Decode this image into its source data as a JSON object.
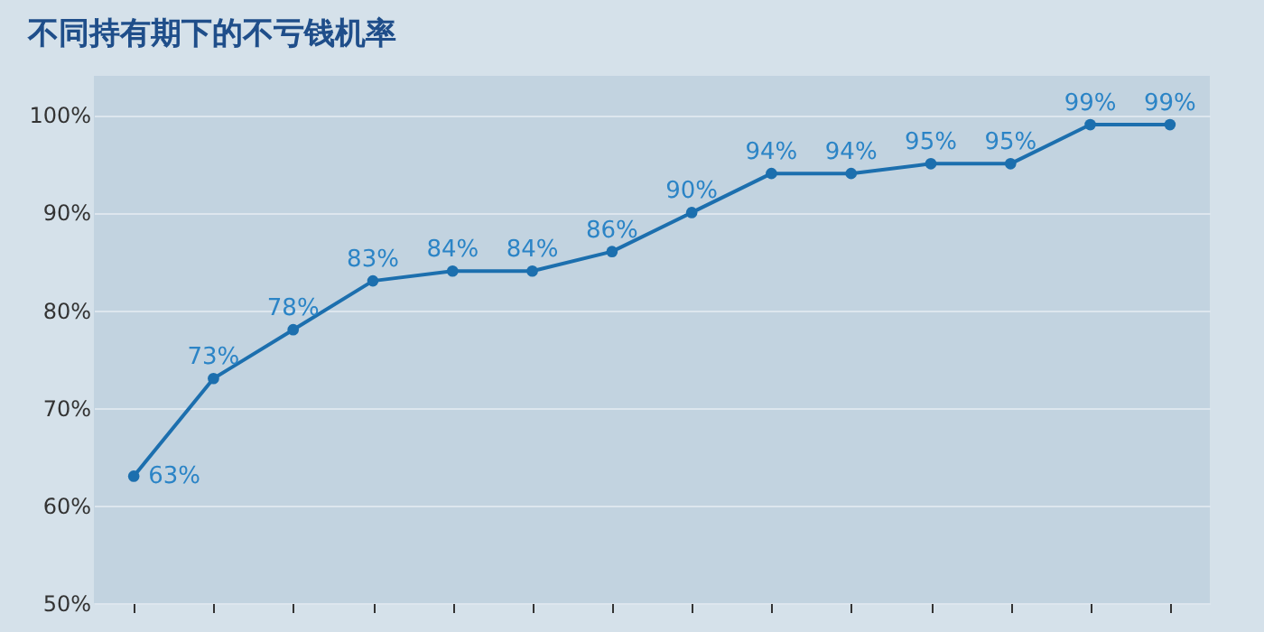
{
  "chart_data": {
    "type": "line",
    "title": "不同持有期下的不亏钱机率",
    "categories": [
      null,
      null,
      null,
      null,
      null,
      null,
      null,
      null,
      null,
      null,
      null,
      null,
      null,
      null
    ],
    "series": [
      {
        "color": "#1c6fae",
        "values": [
          63,
          73,
          78,
          83,
          84,
          84,
          86,
          90,
          94,
          94,
          95,
          95,
          99,
          99
        ],
        "value_labels": [
          "63%",
          "73%",
          "78%",
          "83%",
          "84%",
          "84%",
          "86%",
          "90%",
          "94%",
          "94%",
          "95%",
          "95%",
          "99%",
          "99%"
        ]
      }
    ],
    "ylim": [
      50,
      104
    ],
    "yticks": [
      {
        "value": 50,
        "label": "50%"
      },
      {
        "value": 60,
        "label": "60%"
      },
      {
        "value": 70,
        "label": "70%"
      },
      {
        "value": 80,
        "label": "80%"
      },
      {
        "value": 90,
        "label": "90%"
      },
      {
        "value": 100,
        "label": "100%"
      }
    ],
    "grid": "y",
    "marker": "circle",
    "line_style": "solid",
    "tick_labels": "y"
  }
}
